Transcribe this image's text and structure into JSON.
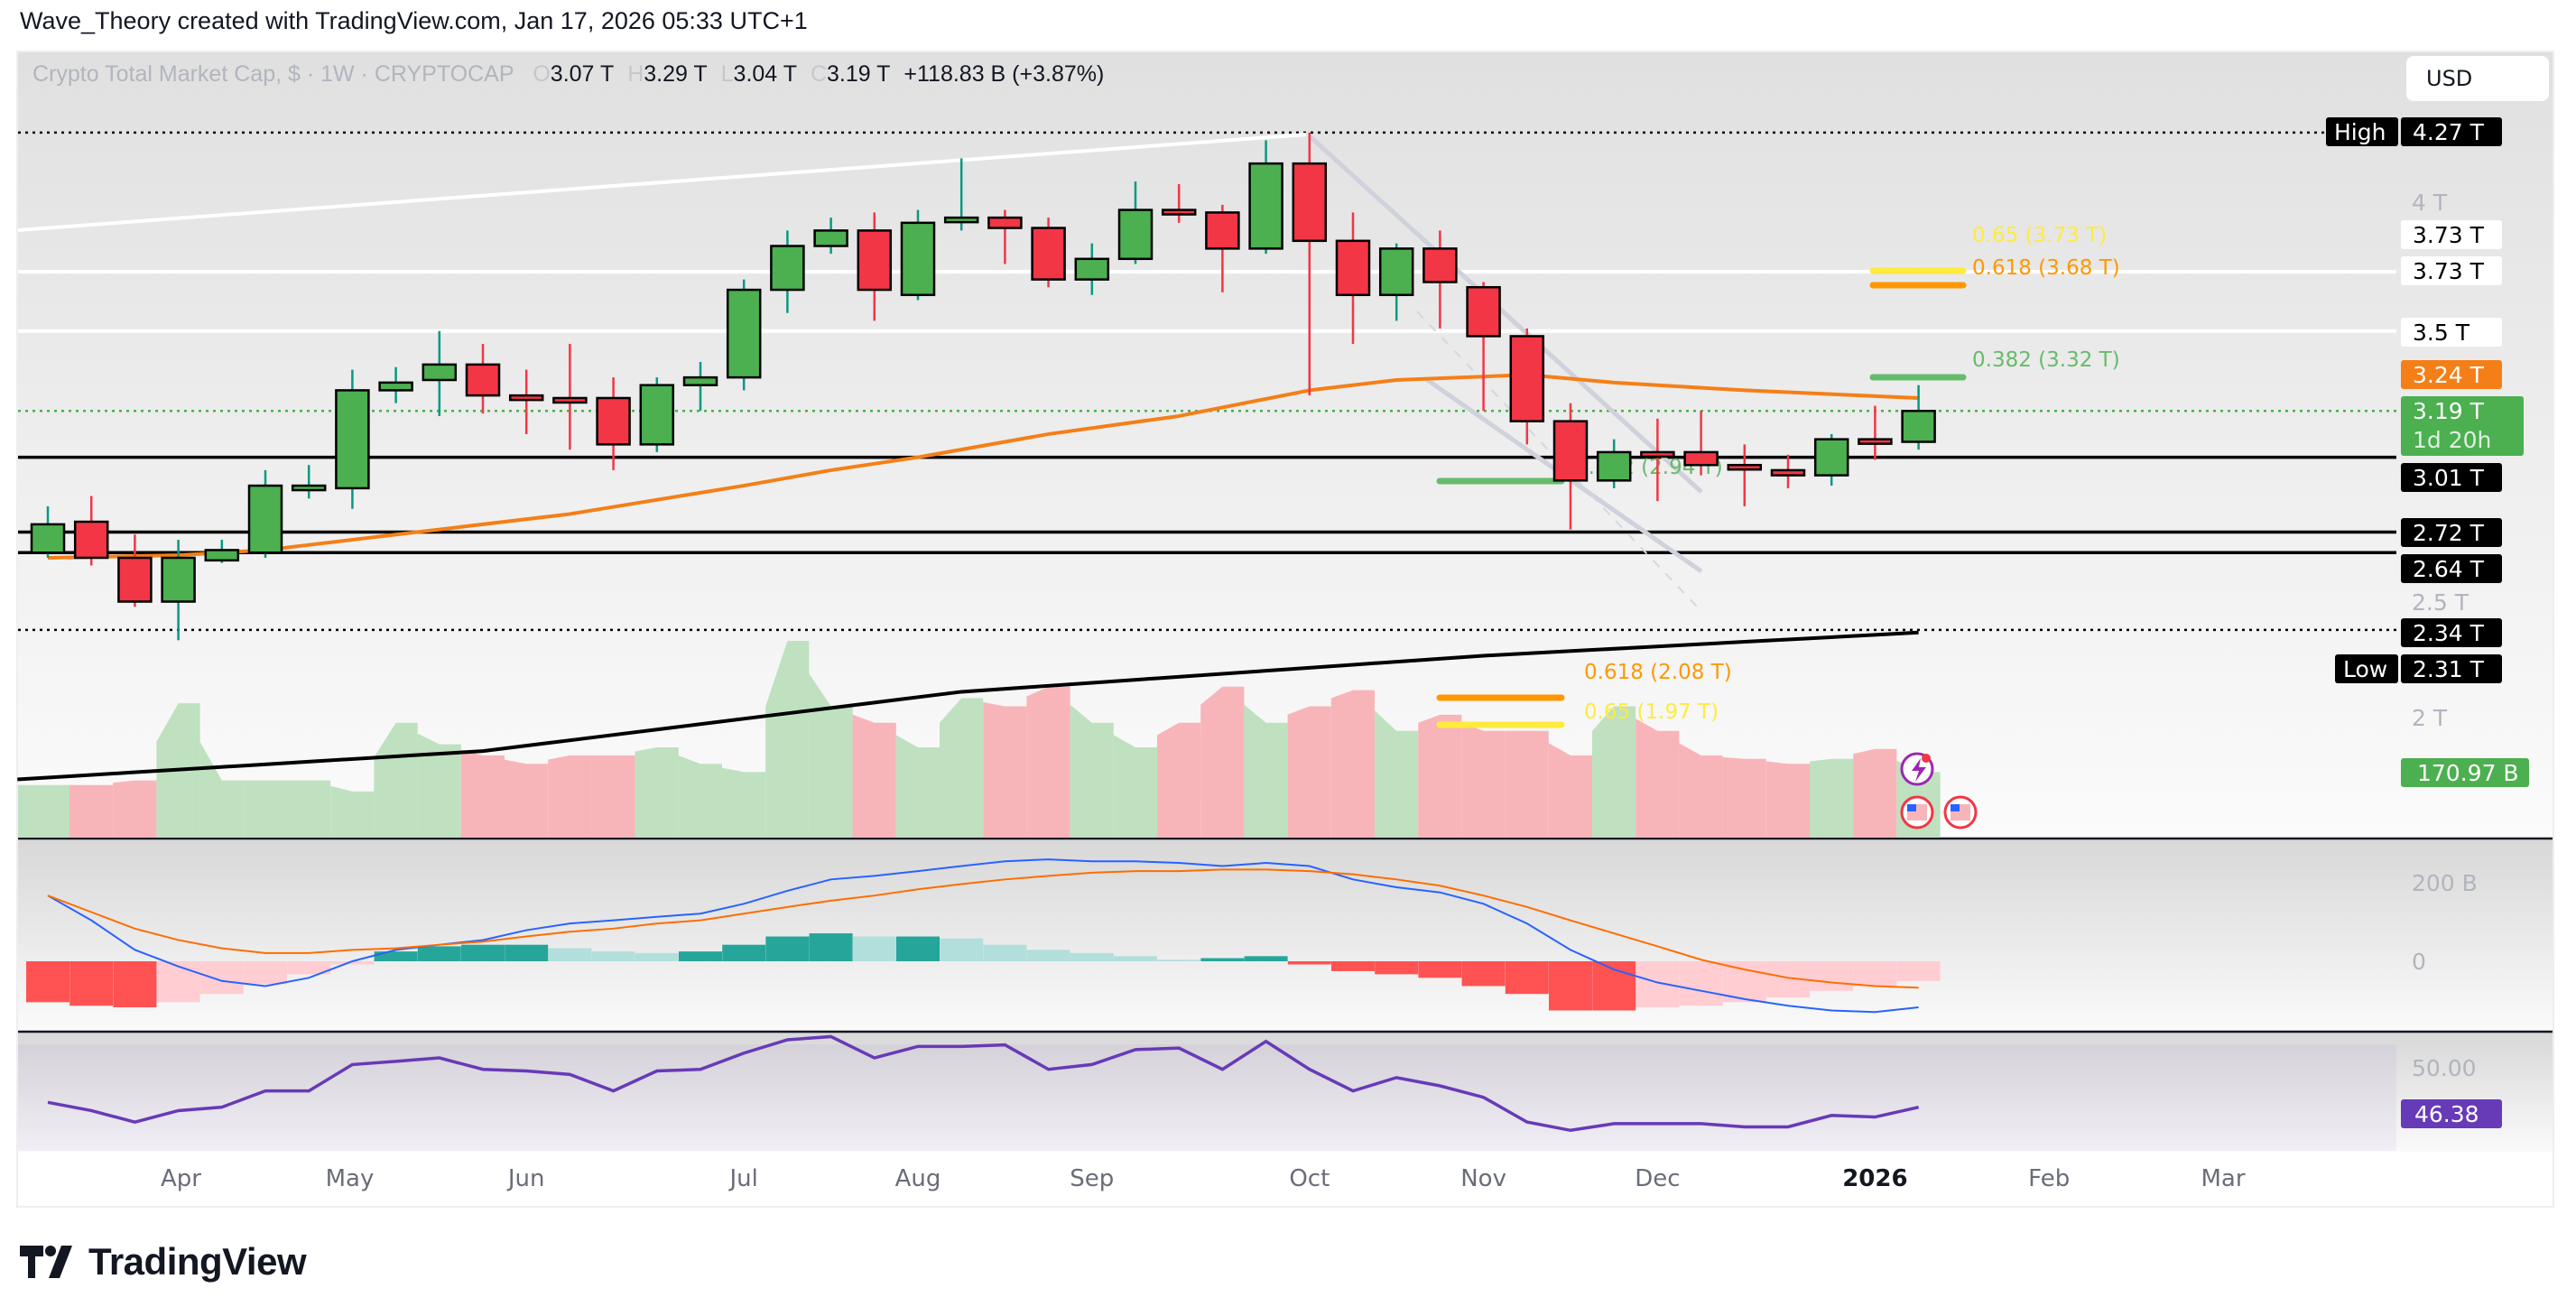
{
  "credit": "Wave_Theory created with TradingView.com, Jan 17, 2026 05:33 UTC+1",
  "legend": {
    "symbol": "Crypto Total Market Cap, $ · 1W · CRYPTOCAP",
    "o_key": "O",
    "o": "3.07 T",
    "h_key": "H",
    "h": "3.29 T",
    "l_key": "L",
    "l": "3.04 T",
    "c_key": "C",
    "c": "3.19 T",
    "change": "+118.83 B (+3.87%)"
  },
  "currency_button": "USD",
  "logo_text": "TradingView",
  "colors": {
    "up": "#4caf50",
    "down": "#f23645",
    "ema": "#f57f17",
    "ma": "#000000",
    "macd": "#2962ff",
    "signal": "#ff6d00",
    "rsi": "#673ab7",
    "vol_up": "#bfe1c0",
    "vol_down": "#f8b5b9"
  },
  "chart_data": {
    "type": "candlestick",
    "interval": "1W",
    "price_scale": "linear",
    "ylim": [
      1.8,
      4.4
    ],
    "price_ticks": [
      "4 T",
      "2.5 T",
      "2 T"
    ],
    "time_ticks": [
      "Apr",
      "May",
      "Jun",
      "Jul",
      "Aug",
      "Sep",
      "Oct",
      "Nov",
      "Dec",
      "2026",
      "Feb",
      "Mar"
    ],
    "ohlc": [
      [
        2.64,
        2.82,
        2.62,
        2.75
      ],
      [
        2.76,
        2.86,
        2.59,
        2.62
      ],
      [
        2.62,
        2.71,
        2.43,
        2.45
      ],
      [
        2.45,
        2.69,
        2.3,
        2.62
      ],
      [
        2.61,
        2.69,
        2.6,
        2.65
      ],
      [
        2.64,
        2.96,
        2.62,
        2.9
      ],
      [
        2.89,
        2.98,
        2.85,
        2.9
      ],
      [
        2.89,
        3.35,
        2.81,
        3.27
      ],
      [
        3.27,
        3.36,
        3.22,
        3.3
      ],
      [
        3.31,
        3.5,
        3.17,
        3.37
      ],
      [
        3.37,
        3.45,
        3.18,
        3.25
      ],
      [
        3.25,
        3.35,
        3.1,
        3.24
      ],
      [
        3.24,
        3.45,
        3.04,
        3.23
      ],
      [
        3.24,
        3.32,
        2.96,
        3.06
      ],
      [
        3.06,
        3.32,
        3.03,
        3.29
      ],
      [
        3.29,
        3.38,
        3.19,
        3.32
      ],
      [
        3.32,
        3.7,
        3.27,
        3.66
      ],
      [
        3.66,
        3.89,
        3.57,
        3.83
      ],
      [
        3.83,
        3.94,
        3.8,
        3.89
      ],
      [
        3.89,
        3.96,
        3.54,
        3.66
      ],
      [
        3.64,
        3.97,
        3.62,
        3.92
      ],
      [
        3.93,
        4.17,
        3.89,
        3.94
      ],
      [
        3.94,
        3.97,
        3.76,
        3.9
      ],
      [
        3.9,
        3.94,
        3.67,
        3.7
      ],
      [
        3.7,
        3.84,
        3.64,
        3.78
      ],
      [
        3.78,
        4.08,
        3.76,
        3.97
      ],
      [
        3.97,
        4.07,
        3.92,
        3.96
      ],
      [
        3.96,
        3.99,
        3.65,
        3.82
      ],
      [
        3.82,
        4.24,
        3.8,
        4.15
      ],
      [
        4.15,
        4.27,
        3.25,
        3.85
      ],
      [
        3.85,
        3.96,
        3.45,
        3.64
      ],
      [
        3.64,
        3.84,
        3.54,
        3.82
      ],
      [
        3.82,
        3.89,
        3.51,
        3.69
      ],
      [
        3.67,
        3.69,
        3.19,
        3.48
      ],
      [
        3.48,
        3.51,
        3.06,
        3.15
      ],
      [
        3.15,
        3.22,
        2.73,
        2.92
      ],
      [
        2.92,
        3.08,
        2.89,
        3.03
      ],
      [
        3.03,
        3.16,
        2.84,
        3.02
      ],
      [
        3.03,
        3.19,
        2.94,
        2.98
      ],
      [
        2.98,
        3.06,
        2.82,
        2.97
      ],
      [
        2.96,
        3.02,
        2.89,
        2.94
      ],
      [
        2.94,
        3.1,
        2.9,
        3.08
      ],
      [
        3.08,
        3.21,
        3.0,
        3.07
      ],
      [
        3.07,
        3.29,
        3.04,
        3.19
      ]
    ],
    "ema": [
      [
        0,
        2.62
      ],
      [
        3,
        2.63
      ],
      [
        5,
        2.65
      ],
      [
        8,
        2.71
      ],
      [
        12,
        2.79
      ],
      [
        16,
        2.9
      ],
      [
        18,
        2.96
      ],
      [
        20,
        3.01
      ],
      [
        23,
        3.1
      ],
      [
        26,
        3.17
      ],
      [
        29,
        3.27
      ],
      [
        31,
        3.31
      ],
      [
        34,
        3.33
      ],
      [
        36,
        3.3
      ],
      [
        39,
        3.27
      ],
      [
        43,
        3.24
      ]
    ],
    "ma_long": [
      [
        -0.7,
        1.76
      ],
      [
        10,
        1.87
      ],
      [
        21,
        2.1
      ],
      [
        33,
        2.24
      ],
      [
        43,
        2.33
      ]
    ],
    "levels": [
      {
        "value": 4.27,
        "style": "dotted",
        "color": "#000000"
      },
      {
        "value": 3.73,
        "style": "solid",
        "color": "#ffffff"
      },
      {
        "value": 3.5,
        "style": "solid",
        "color": "#ffffff"
      },
      {
        "value": 3.19,
        "style": "dotted",
        "color": "#4caf50"
      },
      {
        "value": 3.01,
        "style": "solid",
        "color": "#000000"
      },
      {
        "value": 2.72,
        "style": "solid",
        "color": "#000000"
      },
      {
        "value": 2.64,
        "style": "solid",
        "color": "#000000"
      },
      {
        "value": 2.34,
        "style": "dotted",
        "color": "#000000"
      }
    ],
    "fib_labels": [
      {
        "text": "0.65 (3.73 T)",
        "value": 3.73,
        "color": "#ffeb3b"
      },
      {
        "text": "0.618 (3.68 T)",
        "value": 3.68,
        "color": "#ff9800"
      },
      {
        "text": "0.382 (3.32 T)",
        "value": 3.32,
        "color": "#66bb6a"
      },
      {
        "text": "0.382 (2.94 T)",
        "value": 2.94,
        "color": "#66bb6a"
      },
      {
        "text": "0.618 (2.08 T)",
        "value": 2.08,
        "color": "#ff9800"
      },
      {
        "text": "0.65 (1.97 T)",
        "value": 1.97,
        "color": "#ffeb3b"
      }
    ],
    "price_tags": [
      {
        "label": "High",
        "text": "4.27 T",
        "bg": "#000000",
        "fg": "#ffffff"
      },
      {
        "text": "3.73 T",
        "bg": "#ffffff",
        "fg": "#000000"
      },
      {
        "text": "3.73 T",
        "bg": "#ffffff",
        "fg": "#000000"
      },
      {
        "text": "3.5 T",
        "bg": "#ffffff",
        "fg": "#000000"
      },
      {
        "text": "3.24 T",
        "bg": "#f57f17",
        "fg": "#ffffff"
      },
      {
        "text": "3.19 T",
        "sub": "1d 20h",
        "bg": "#4caf50",
        "fg": "#ffffff"
      },
      {
        "text": "3.01 T",
        "bg": "#000000",
        "fg": "#ffffff"
      },
      {
        "text": "2.72 T",
        "bg": "#000000",
        "fg": "#ffffff"
      },
      {
        "text": "2.64 T",
        "bg": "#000000",
        "fg": "#ffffff"
      },
      {
        "text": "2.34 T",
        "bg": "#000000",
        "fg": "#ffffff"
      },
      {
        "label": "Low",
        "text": "2.31 T",
        "bg": "#000000",
        "fg": "#ffffff"
      }
    ],
    "volume_b": [
      137,
      137,
      149,
      350,
      149,
      149,
      149,
      120,
      299,
      243,
      214,
      192,
      214,
      214,
      235,
      192,
      171,
      512,
      342,
      299,
      235,
      363,
      342,
      393,
      299,
      235,
      299,
      393,
      299,
      342,
      384,
      278,
      320,
      278,
      278,
      214,
      342,
      278,
      214,
      205,
      192,
      205,
      231,
      170.97
    ],
    "volume_tag": "170.97 B",
    "macd": {
      "ticks": [
        "200 B",
        "0"
      ],
      "histogram_b": [
        -104,
        -113,
        -117,
        -104,
        -83,
        -58,
        -33,
        -8,
        25,
        38,
        42,
        42,
        33,
        25,
        21,
        25,
        42,
        63,
        71,
        63,
        63,
        58,
        42,
        29,
        21,
        13,
        4,
        8,
        13,
        -8,
        -25,
        -33,
        -42,
        -63,
        -83,
        -125,
        -125,
        -117,
        -113,
        -104,
        -92,
        -75,
        -63,
        -50
      ],
      "macd_b": [
        167,
        104,
        29,
        -13,
        -50,
        -63,
        -42,
        0,
        29,
        42,
        54,
        79,
        96,
        104,
        113,
        121,
        146,
        179,
        208,
        217,
        229,
        242,
        254,
        259,
        254,
        254,
        250,
        242,
        250,
        242,
        208,
        188,
        175,
        146,
        96,
        29,
        -21,
        -54,
        -75,
        -96,
        -113,
        -125,
        -129,
        -117
      ],
      "signal_b": [
        167,
        125,
        83,
        54,
        33,
        21,
        21,
        29,
        33,
        42,
        50,
        63,
        75,
        83,
        96,
        104,
        121,
        138,
        154,
        167,
        183,
        196,
        208,
        217,
        225,
        229,
        229,
        233,
        233,
        229,
        221,
        208,
        192,
        167,
        138,
        104,
        71,
        38,
        4,
        -21,
        -42,
        -54,
        -63,
        -67
      ]
    },
    "rsi": {
      "tick": "50.00",
      "band": [
        30,
        70
      ],
      "values": [
        48.2,
        45.1,
        40.8,
        45.1,
        46.4,
        52.5,
        52.5,
        62.4,
        63.6,
        64.9,
        60.6,
        60.0,
        58.7,
        52.5,
        60.0,
        60.6,
        66.7,
        71.7,
        72.9,
        64.9,
        69.2,
        69.2,
        69.8,
        60.6,
        62.4,
        68.0,
        68.6,
        60.6,
        71.1,
        60.6,
        52.5,
        57.5,
        54.4,
        50.1,
        40.8,
        37.7,
        40.2,
        40.2,
        40.2,
        39.0,
        39.0,
        43.3,
        42.7,
        46.38
      ],
      "tag": "46.38"
    }
  }
}
